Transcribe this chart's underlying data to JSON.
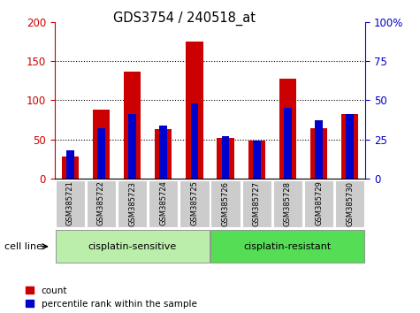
{
  "title": "GDS3754 / 240518_at",
  "samples": [
    "GSM385721",
    "GSM385722",
    "GSM385723",
    "GSM385724",
    "GSM385725",
    "GSM385726",
    "GSM385727",
    "GSM385728",
    "GSM385729",
    "GSM385730"
  ],
  "counts": [
    28,
    88,
    137,
    63,
    175,
    52,
    48,
    128,
    64,
    82
  ],
  "percentiles": [
    18,
    32,
    41,
    34,
    48,
    27,
    24,
    45,
    37,
    41
  ],
  "count_color": "#cc0000",
  "percentile_color": "#0000cc",
  "left_ylim": [
    0,
    200
  ],
  "right_ylim": [
    0,
    100
  ],
  "left_yticks": [
    0,
    50,
    100,
    150,
    200
  ],
  "right_yticks": [
    0,
    25,
    50,
    75,
    100
  ],
  "right_yticklabels": [
    "0",
    "25",
    "50",
    "75",
    "100%"
  ],
  "groups": [
    {
      "label": "cisplatin-sensitive",
      "start": 0,
      "end": 5,
      "color": "#bbeeaa"
    },
    {
      "label": "cisplatin-resistant",
      "start": 5,
      "end": 10,
      "color": "#55dd55"
    }
  ],
  "group_label": "cell line",
  "legend_count": "count",
  "legend_percentile": "percentile rank within the sample",
  "tick_bg_color": "#cccccc",
  "plot_bg": "#ffffff"
}
